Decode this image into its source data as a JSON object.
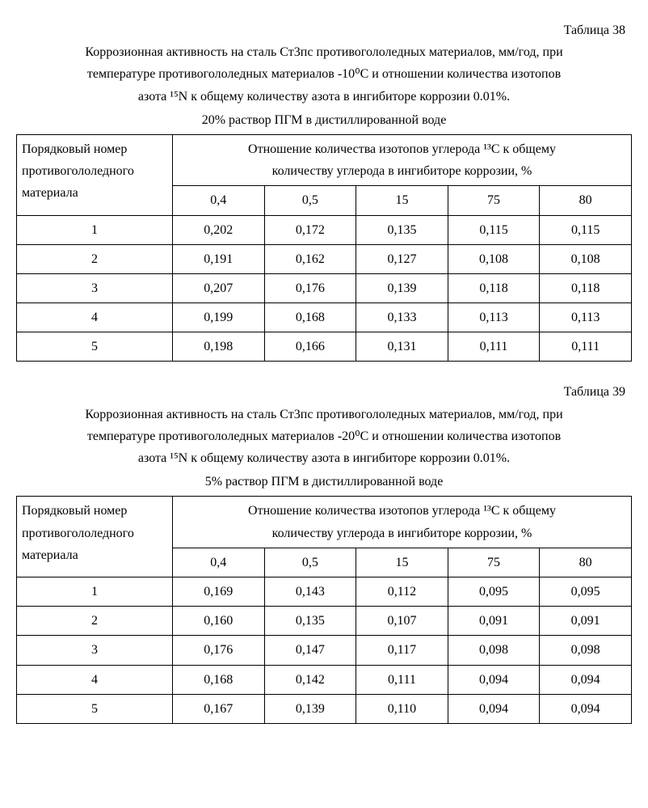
{
  "tables": [
    {
      "label": "Таблица 38",
      "caption_lines": [
        "Коррозионная активность на сталь Ст3пс противогололедных материалов, мм/год, при",
        "температуре противогололедных материалов -10⁰С и отношении количества изотопов",
        "азота ¹⁵N  к общему количеству азота в ингибиторе коррозии 0.01%."
      ],
      "subcaption": "20% раствор ПГМ в дистиллированной воде",
      "rowhead_lines": [
        "Порядковый номер",
        "противогололедного",
        "материала"
      ],
      "colhead_lines": [
        "Отношение количества изотопов углерода ¹³С к общему",
        "количеству углерода в ингибиторе коррозии, %"
      ],
      "columns": [
        "0,4",
        "0,5",
        "15",
        "75",
        "80"
      ],
      "rows": [
        {
          "n": "1",
          "v": [
            "0,202",
            "0,172",
            "0,135",
            "0,115",
            "0,115"
          ]
        },
        {
          "n": "2",
          "v": [
            "0,191",
            "0,162",
            "0,127",
            "0,108",
            "0,108"
          ]
        },
        {
          "n": "3",
          "v": [
            "0,207",
            "0,176",
            "0,139",
            "0,118",
            "0,118"
          ]
        },
        {
          "n": "4",
          "v": [
            "0,199",
            "0,168",
            "0,133",
            "0,113",
            "0,113"
          ]
        },
        {
          "n": "5",
          "v": [
            "0,198",
            "0,166",
            "0,131",
            "0,111",
            "0,111"
          ]
        }
      ]
    },
    {
      "label": "Таблица 39",
      "caption_lines": [
        "Коррозионная активность на сталь Ст3пс противогололедных материалов, мм/год, при",
        "температуре противогололедных материалов -20⁰С и отношении количества изотопов",
        "азота ¹⁵N  к общему количеству азота в ингибиторе коррозии 0.01%."
      ],
      "subcaption": "5% раствор ПГМ в дистиллированной воде",
      "rowhead_lines": [
        "Порядковый номер",
        "противогололедного",
        "материала"
      ],
      "colhead_lines": [
        "Отношение количества изотопов углерода ¹³С к общему",
        "количеству углерода в ингибиторе коррозии, %"
      ],
      "columns": [
        "0,4",
        "0,5",
        "15",
        "75",
        "80"
      ],
      "rows": [
        {
          "n": "1",
          "v": [
            "0,169",
            "0,143",
            "0,112",
            "0,095",
            "0,095"
          ]
        },
        {
          "n": "2",
          "v": [
            "0,160",
            "0,135",
            "0,107",
            "0,091",
            "0,091"
          ]
        },
        {
          "n": "3",
          "v": [
            "0,176",
            "0,147",
            "0,117",
            "0,098",
            "0,098"
          ]
        },
        {
          "n": "4",
          "v": [
            "0,168",
            "0,142",
            "0,111",
            "0,094",
            "0,094"
          ]
        },
        {
          "n": "5",
          "v": [
            "0,167",
            "0,139",
            "0,110",
            "0,094",
            "0,094"
          ]
        }
      ]
    }
  ],
  "style": {
    "font_family": "Times New Roman",
    "body_font_size_pt": 12,
    "border_color": "#000000",
    "background_color": "#ffffff",
    "text_color": "#000000"
  }
}
